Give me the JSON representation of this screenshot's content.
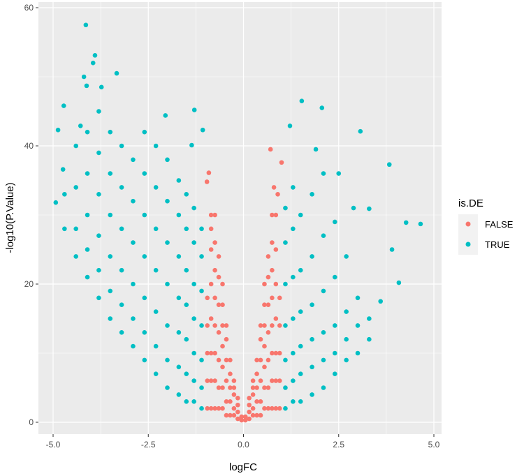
{
  "chart_data": {
    "type": "scatter",
    "xlabel": "logFC",
    "ylabel": "-log10(P.Value)",
    "xlim": [
      -5.3,
      5.3
    ],
    "ylim": [
      -1.7,
      60.5
    ],
    "x_ticks": [
      "-5.0",
      "-2.5",
      "0.0",
      "2.5",
      "5.0"
    ],
    "y_ticks": [
      "0",
      "20",
      "40",
      "60"
    ],
    "grid": true,
    "legend": {
      "title": "is.DE",
      "position": "right",
      "entries": [
        "FALSE",
        "TRUE"
      ]
    },
    "colors": {
      "FALSE": "#F8766D",
      "TRUE": "#00BFC4",
      "panel": "#EBEBEB"
    },
    "false_points": {
      "x": [
        0.05,
        0.15,
        0.25,
        0.35,
        0.45,
        0.55,
        0.65,
        0.75,
        0.85,
        0.95
      ],
      "y": [
        [
          0.3,
          0.8
        ],
        [
          0.5,
          1.5,
          2.5,
          3.5
        ],
        [
          1,
          2,
          4,
          5,
          6
        ],
        [
          1,
          3,
          5,
          7,
          9
        ],
        [
          1,
          3,
          6,
          9,
          12,
          14
        ],
        [
          2,
          5,
          8,
          11,
          14,
          17,
          20
        ],
        [
          2,
          5,
          9,
          13,
          17,
          21,
          24
        ],
        [
          2,
          6,
          10,
          14,
          18,
          22,
          26,
          30
        ],
        [
          2,
          6,
          10,
          15,
          20,
          25,
          30
        ],
        [
          2,
          6,
          10,
          14,
          18
        ]
      ],
      "extra": [
        [
          0.71,
          39.5
        ],
        [
          -0.91,
          36.1
        ],
        [
          -0.96,
          34.8
        ],
        [
          1.0,
          37.6
        ],
        [
          0.8,
          34
        ],
        [
          -0.85,
          28
        ],
        [
          0.9,
          33
        ]
      ]
    },
    "true_points": {
      "columns": [
        [
          -1.1,
          [
            2,
            5,
            9,
            14,
            19,
            24,
            28
          ]
        ],
        [
          -1.3,
          [
            3,
            6,
            10,
            15,
            20,
            26,
            31
          ]
        ],
        [
          -1.5,
          [
            3,
            7,
            12,
            17,
            22,
            28,
            33
          ]
        ],
        [
          -1.7,
          [
            4,
            8,
            13,
            18,
            24,
            30,
            35
          ]
        ],
        [
          -2.0,
          [
            5,
            9,
            14,
            20,
            26,
            32,
            38
          ]
        ],
        [
          -2.3,
          [
            7,
            11,
            16,
            22,
            28,
            34,
            40
          ]
        ],
        [
          -2.6,
          [
            9,
            13,
            18,
            24,
            30,
            36,
            42
          ]
        ],
        [
          -2.9,
          [
            11,
            15,
            20,
            26,
            32,
            38
          ]
        ],
        [
          -3.2,
          [
            13,
            17,
            22,
            28,
            34,
            40
          ]
        ],
        [
          -3.5,
          [
            15,
            19,
            24,
            30,
            36,
            42
          ]
        ],
        [
          -3.8,
          [
            18,
            22,
            27,
            33,
            39,
            45
          ]
        ],
        [
          -4.1,
          [
            21,
            25,
            30,
            36,
            42
          ]
        ],
        [
          -4.4,
          [
            24,
            28,
            34,
            40
          ]
        ],
        [
          -4.7,
          [
            28,
            33
          ]
        ],
        [
          1.1,
          [
            2,
            5,
            9,
            14,
            20,
            26,
            31
          ]
        ],
        [
          1.3,
          [
            3,
            6,
            10,
            15,
            21,
            28,
            34
          ]
        ],
        [
          1.5,
          [
            3,
            7,
            11,
            16,
            22,
            30
          ]
        ],
        [
          1.8,
          [
            4,
            8,
            12,
            17,
            24,
            33
          ]
        ],
        [
          2.1,
          [
            5,
            9,
            13,
            19,
            27,
            36
          ]
        ],
        [
          2.4,
          [
            7,
            10,
            14,
            21,
            29
          ]
        ],
        [
          2.7,
          [
            9,
            12,
            16,
            24
          ]
        ],
        [
          3.0,
          [
            10,
            14,
            18
          ]
        ],
        [
          3.3,
          [
            12,
            15
          ]
        ]
      ],
      "extra": [
        [
          -4.14,
          57.5
        ],
        [
          -3.9,
          53.1
        ],
        [
          -3.95,
          52
        ],
        [
          -3.33,
          50.5
        ],
        [
          -4.19,
          50
        ],
        [
          -4.12,
          48.7
        ],
        [
          -3.73,
          48.5
        ],
        [
          -4.72,
          45.8
        ],
        [
          -4.28,
          42.9
        ],
        [
          -4.87,
          42.3
        ],
        [
          -4.93,
          31.8
        ],
        [
          -4.74,
          36.6
        ],
        [
          -2.05,
          44.4
        ],
        [
          -1.29,
          45.2
        ],
        [
          -1.07,
          42.3
        ],
        [
          -1.36,
          40.1
        ],
        [
          1.53,
          46.5
        ],
        [
          2.06,
          45.5
        ],
        [
          1.22,
          42.9
        ],
        [
          3.07,
          42.1
        ],
        [
          3.83,
          37.3
        ],
        [
          4.65,
          28.7
        ],
        [
          4.27,
          28.9
        ],
        [
          4.08,
          20.2
        ],
        [
          2.89,
          31
        ],
        [
          3.3,
          30.9
        ],
        [
          3.6,
          17.5
        ],
        [
          3.9,
          25
        ],
        [
          2.5,
          36
        ],
        [
          1.9,
          39.5
        ]
      ]
    }
  }
}
